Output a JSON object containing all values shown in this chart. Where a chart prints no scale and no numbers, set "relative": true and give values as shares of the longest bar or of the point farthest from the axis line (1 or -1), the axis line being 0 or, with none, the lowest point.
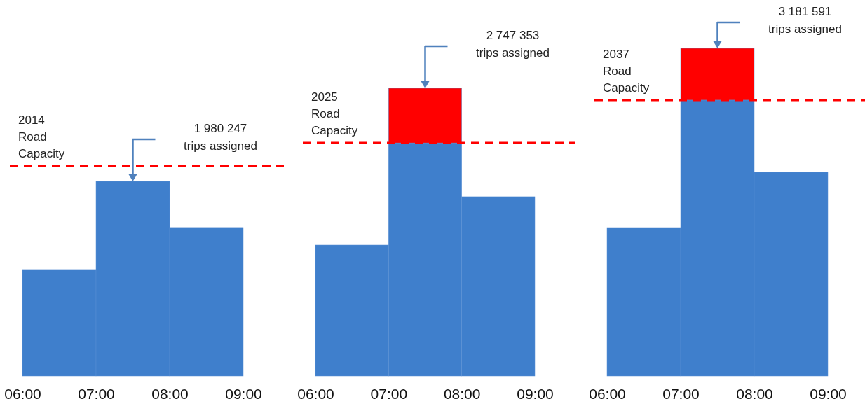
{
  "chart_data": [
    {
      "type": "bar",
      "relative": true,
      "stacked": true,
      "x": [
        6.5,
        7.5,
        8.5
      ],
      "xlim": [
        6,
        9
      ],
      "xticks": [
        {
          "value": 6,
          "label": "06:00"
        },
        {
          "value": 7,
          "label": "07:00"
        },
        {
          "value": 8,
          "label": "08:00"
        },
        {
          "value": 9,
          "label": "09:00"
        }
      ],
      "series": [
        {
          "color": "#3f7fcc",
          "values": [
            0.547,
            1,
            0.763
          ]
        }
      ],
      "ref_lines": [
        {
          "axis": "y",
          "value": 1.079,
          "label": "2014\nRoad\nCapacity",
          "color": "#ff0000",
          "line_style": "dashed"
        }
      ],
      "annotations": [
        "1 980 247\ntrips assigned"
      ]
    },
    {
      "type": "bar",
      "relative": true,
      "stacked": true,
      "x": [
        6.5,
        7.5,
        8.5
      ],
      "xlim": [
        6,
        9
      ],
      "xticks": [
        {
          "value": 6,
          "label": "06:00"
        },
        {
          "value": 7,
          "label": "07:00"
        },
        {
          "value": 8,
          "label": "08:00"
        },
        {
          "value": 9,
          "label": "09:00"
        }
      ],
      "series": [
        {
          "color": "#3f7fcc",
          "values": [
            0.455,
            0.81,
            0.623
          ]
        },
        {
          "color": "#ff0000",
          "values": [
            null,
            0.19,
            null
          ]
        }
      ],
      "ref_lines": [
        {
          "axis": "y",
          "value": 0.81,
          "label": "2025\nRoad\nCapacity",
          "color": "#ff0000",
          "line_style": "dashed"
        }
      ],
      "annotations": [
        "2 747 353\ntrips assigned"
      ]
    },
    {
      "type": "bar",
      "relative": true,
      "stacked": true,
      "x": [
        6.5,
        7.5,
        8.5
      ],
      "xlim": [
        6,
        9
      ],
      "xticks": [
        {
          "value": 6,
          "label": "06:00"
        },
        {
          "value": 7,
          "label": "07:00"
        },
        {
          "value": 8,
          "label": "08:00"
        },
        {
          "value": 9,
          "label": "09:00"
        }
      ],
      "series": [
        {
          "color": "#3f7fcc",
          "values": [
            0.453,
            0.842,
            0.622
          ]
        },
        {
          "color": "#ff0000",
          "values": [
            null,
            0.158,
            null
          ]
        }
      ],
      "ref_lines": [
        {
          "axis": "y",
          "value": 0.842,
          "label": "2037\nRoad\nCapacity",
          "color": "#ff0000",
          "line_style": "dashed"
        }
      ],
      "annotations": [
        "3 181 591\ntrips assigned"
      ]
    }
  ]
}
